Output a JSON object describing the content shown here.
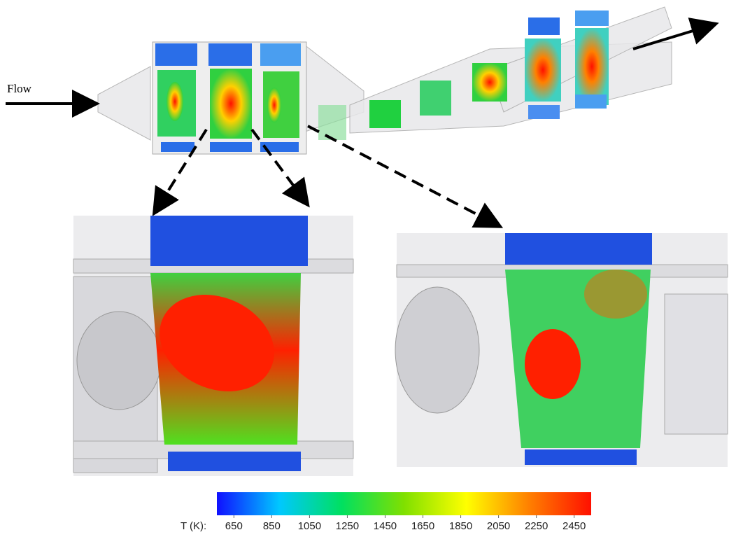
{
  "labels": {
    "flow": "Flow"
  },
  "colorbar": {
    "label": "T (K):",
    "lim": [
      560,
      2540
    ],
    "ticks": [
      650,
      850,
      1050,
      1250,
      1450,
      1650,
      1850,
      2050,
      2250,
      2450
    ],
    "colors": [
      "#1010ff",
      "#00c8ff",
      "#00e060",
      "#80e000",
      "#ffff00",
      "#ff8000",
      "#ff1000"
    ]
  }
}
